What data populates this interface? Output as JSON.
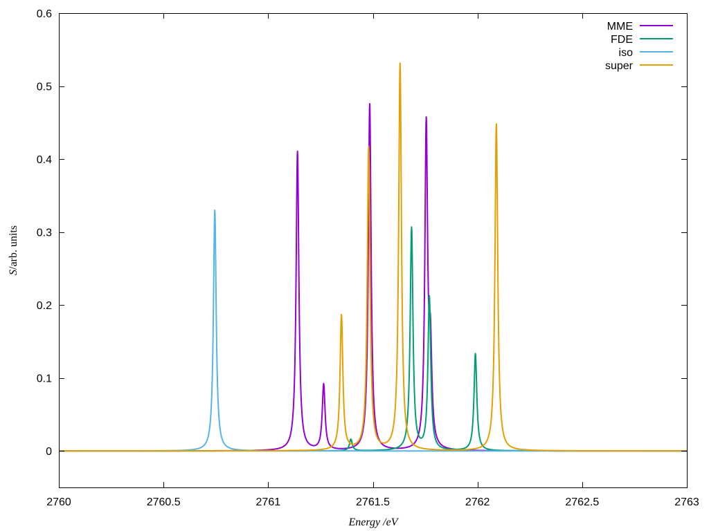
{
  "chart_data": {
    "type": "line",
    "title": "",
    "xlabel": "Energy /eV",
    "ylabel_symbol": "S",
    "ylabel_rest": "/arb. units",
    "xlim": [
      2760,
      2763
    ],
    "ylim": [
      -0.05,
      0.6
    ],
    "xticks": [
      2760,
      2760.5,
      2761,
      2761.5,
      2762,
      2762.5,
      2763
    ],
    "xtick_labels": [
      "2760",
      "2760.5",
      "2761",
      "2761.5",
      "2762",
      "2762.5",
      "2763"
    ],
    "yticks": [
      0,
      0.1,
      0.2,
      0.3,
      0.4,
      0.5,
      0.6
    ],
    "ytick_labels": [
      "0",
      "0.1",
      "0.2",
      "0.3",
      "0.4",
      "0.5",
      "0.6"
    ],
    "grid": false,
    "legend_position": "top-right",
    "lorentzian_hwhm_eV": 0.008,
    "series": [
      {
        "name": "MME",
        "color": "#9400d3",
        "peaks": [
          {
            "x": 2761.14,
            "y": 0.41
          },
          {
            "x": 2761.265,
            "y": 0.09
          },
          {
            "x": 2761.485,
            "y": 0.475
          },
          {
            "x": 2761.755,
            "y": 0.44
          },
          {
            "x": 2761.775,
            "y": 0.125
          }
        ]
      },
      {
        "name": "FDE",
        "color": "#009e73",
        "peaks": [
          {
            "x": 2761.395,
            "y": 0.016
          },
          {
            "x": 2761.685,
            "y": 0.305
          },
          {
            "x": 2761.77,
            "y": 0.21
          },
          {
            "x": 2761.99,
            "y": 0.133
          }
        ]
      },
      {
        "name": "iso",
        "color": "#56b4e9",
        "peaks": [
          {
            "x": 2760.745,
            "y": 0.33
          }
        ]
      },
      {
        "name": "super",
        "color": "#e69f00",
        "peaks": [
          {
            "x": 2761.35,
            "y": 0.185
          },
          {
            "x": 2761.48,
            "y": 0.415
          },
          {
            "x": 2761.63,
            "y": 0.53
          },
          {
            "x": 2762.09,
            "y": 0.448
          }
        ]
      }
    ]
  }
}
